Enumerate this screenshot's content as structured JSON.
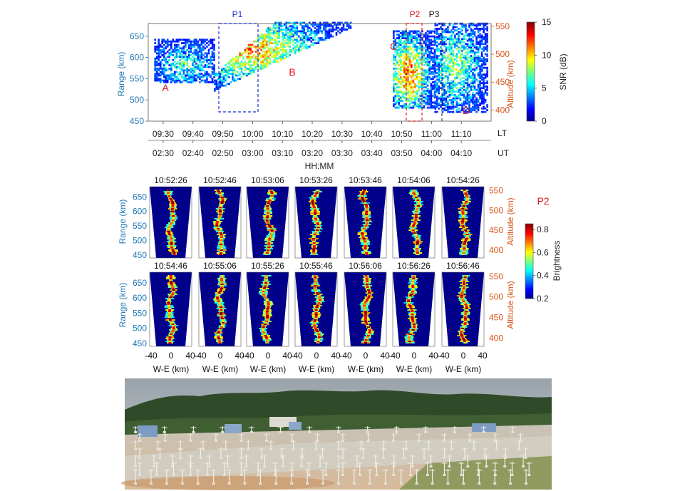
{
  "top_panel": {
    "left_axis_label": "Range (km)",
    "right_axis_label": "Altitude (km)",
    "range_ticks": [
      450,
      500,
      550,
      600,
      650
    ],
    "altitude_ticks": [
      400,
      450,
      500,
      550
    ],
    "lt_ticks": [
      "09:30",
      "09:40",
      "09:50",
      "10:00",
      "10:10",
      "10:20",
      "10:30",
      "10:40",
      "10:50",
      "11:00",
      "11:10"
    ],
    "ut_ticks": [
      "02:30",
      "02:40",
      "02:50",
      "03:00",
      "03:10",
      "03:20",
      "03:30",
      "03:40",
      "03:50",
      "04:00",
      "04:10"
    ],
    "lt_label": "LT",
    "ut_label": "UT",
    "time_label": "HH:MM",
    "period_labels": [
      {
        "text": "P1",
        "color": "#1f2fd6"
      },
      {
        "text": "P2",
        "color": "#e01818"
      },
      {
        "text": "P3",
        "color": "#000000"
      }
    ],
    "region_labels": [
      "A",
      "B",
      "C",
      "D"
    ],
    "colorbar": {
      "label": "SNR (dB)",
      "ticks": [
        0,
        5,
        10,
        15
      ],
      "range": [
        0,
        15
      ]
    }
  },
  "frames_panel": {
    "period_label": "P2",
    "row1_times": [
      "10:52:26",
      "10:52:46",
      "10:53:06",
      "10:53:26",
      "10:53:46",
      "10:54:06",
      "10:54:26"
    ],
    "row2_times": [
      "10:54:46",
      "10:55:06",
      "10:55:26",
      "10:55:46",
      "10:56:06",
      "10:56:26",
      "10:56:46"
    ],
    "range_ticks": [
      450,
      500,
      550,
      600,
      650
    ],
    "altitude_ticks": [
      400,
      450,
      500,
      550
    ],
    "left_axis_label": "Range (km)",
    "right_axis_label": "Altitude (km)",
    "x_tick_labels": [
      "-40",
      "0",
      "40"
    ],
    "x_axis_label": "W-E (km)",
    "colorbar": {
      "label": "Brightness",
      "ticks": [
        "0.2",
        "0.4",
        "0.6",
        "0.8"
      ],
      "range": [
        0.2,
        0.85
      ]
    }
  },
  "chart_data": {
    "type": "heatmap",
    "title": "",
    "x_axis": {
      "label": "HH:MM",
      "lt_range": [
        "09:25",
        "11:20"
      ]
    },
    "y_axis": {
      "label": "Range (km)",
      "range": [
        450,
        680
      ]
    },
    "y2_axis": {
      "label": "Altitude (km)",
      "range": [
        380,
        555
      ]
    },
    "color_scale": {
      "name": "jet",
      "label": "SNR (dB)",
      "range": [
        0,
        15
      ]
    },
    "periods": [
      {
        "name": "P1",
        "lt_start": "09:50",
        "lt_end": "10:06"
      },
      {
        "name": "P2",
        "lt_start": "10:52",
        "lt_end": "10:57"
      },
      {
        "name": "P3",
        "lt_start": "10:57",
        "lt_end": "11:02"
      }
    ],
    "echo_regions": [
      {
        "label": "A",
        "lt_start": "09:27",
        "lt_end": "09:48",
        "range_km": [
          540,
          630
        ]
      },
      {
        "label": "B",
        "lt_start": "09:48",
        "lt_end": "10:33",
        "range_km": [
          520,
          680
        ]
      },
      {
        "label": "C",
        "lt_start": "10:47",
        "lt_end": "11:01",
        "range_km": [
          480,
          660
        ]
      },
      {
        "label": "D",
        "lt_start": "11:01",
        "lt_end": "11:19",
        "range_km": [
          470,
          680
        ]
      }
    ]
  },
  "photo": {
    "description_label": ""
  }
}
